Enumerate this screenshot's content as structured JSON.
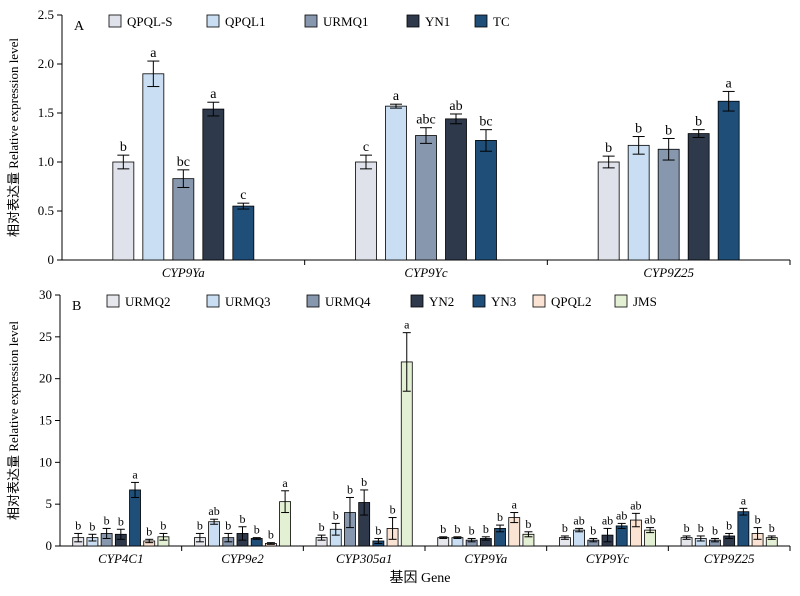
{
  "x_axis_title": "基因 Gene",
  "chart_data": [
    {
      "type": "bar",
      "panel_label": "A",
      "ylabel": "相对表达量 Relative expression level",
      "ylim": [
        0,
        2.5
      ],
      "yticks": [
        "0",
        "0.5",
        "1.0",
        "1.5",
        "2.0",
        "2.5"
      ],
      "ytick_values": [
        0,
        0.5,
        1.0,
        1.5,
        2.0,
        2.5
      ],
      "categories": [
        "CYP9Ya",
        "CYP9Yc",
        "CYP9Z25"
      ],
      "legend_position": "top-left",
      "grid": false,
      "series": [
        {
          "name": "QPQL-S",
          "color": "#dfe2ea",
          "values": [
            1.0,
            1.0,
            1.0
          ],
          "errors": [
            0.07,
            0.07,
            0.06
          ],
          "letters": [
            "b",
            "c",
            "b"
          ]
        },
        {
          "name": "QPQL1",
          "color": "#c9def2",
          "values": [
            1.9,
            1.57,
            1.17
          ],
          "errors": [
            0.13,
            0.02,
            0.09
          ],
          "letters": [
            "a",
            "a",
            "b"
          ]
        },
        {
          "name": "URMQ1",
          "color": "#8798ae",
          "values": [
            0.83,
            1.27,
            1.13
          ],
          "errors": [
            0.09,
            0.08,
            0.11
          ],
          "letters": [
            "bc",
            "abc",
            "b"
          ]
        },
        {
          "name": "YN1",
          "color": "#2e3a4c",
          "values": [
            1.54,
            1.44,
            1.29
          ],
          "errors": [
            0.07,
            0.05,
            0.04
          ],
          "letters": [
            "a",
            "ab",
            "b"
          ]
        },
        {
          "name": "TC",
          "color": "#1f4e79",
          "values": [
            0.55,
            1.22,
            1.62
          ],
          "errors": [
            0.03,
            0.11,
            0.1
          ],
          "letters": [
            "c",
            "bc",
            "a"
          ]
        }
      ]
    },
    {
      "type": "bar",
      "panel_label": "B",
      "ylabel": "相对表达量 Relative expression level",
      "xlabel": "基因 Gene",
      "ylim": [
        0,
        30
      ],
      "yticks": [
        "0",
        "5",
        "10",
        "15",
        "20",
        "25",
        "30"
      ],
      "ytick_values": [
        0,
        5,
        10,
        15,
        20,
        25,
        30
      ],
      "categories": [
        "CYP4C1",
        "CYP9e2",
        "CYP305a1",
        "CYP9Ya",
        "CYP9Yc",
        "CYP9Z25"
      ],
      "legend_position": "top-left",
      "grid": false,
      "series": [
        {
          "name": "URMQ2",
          "color": "#e6e7ec",
          "values": [
            1.0,
            1.0,
            1.0,
            1.0,
            1.0,
            1.0
          ],
          "errors": [
            0.5,
            0.5,
            0.3,
            0.1,
            0.2,
            0.2
          ],
          "letters": [
            "b",
            "b",
            "b",
            "b",
            "b",
            "b"
          ]
        },
        {
          "name": "URMQ3",
          "color": "#c9def2",
          "values": [
            1.0,
            2.9,
            2.0,
            1.0,
            1.9,
            0.9
          ],
          "errors": [
            0.4,
            0.3,
            0.7,
            0.1,
            0.2,
            0.3
          ],
          "letters": [
            "b",
            "ab",
            "b",
            "b",
            "ab",
            "b"
          ]
        },
        {
          "name": "URMQ4",
          "color": "#8798ae",
          "values": [
            1.5,
            1.0,
            4.0,
            0.7,
            0.7,
            0.7
          ],
          "errors": [
            0.6,
            0.5,
            1.8,
            0.2,
            0.2,
            0.2
          ],
          "letters": [
            "b",
            "b",
            "b",
            "b",
            "b",
            "b"
          ]
        },
        {
          "name": "YN2",
          "color": "#2e3a4c",
          "values": [
            1.4,
            1.5,
            5.2,
            0.9,
            1.3,
            1.2
          ],
          "errors": [
            0.6,
            0.8,
            1.5,
            0.2,
            0.8,
            0.3
          ],
          "letters": [
            "b",
            "b",
            "b",
            "b",
            "ab",
            "b"
          ]
        },
        {
          "name": "YN3",
          "color": "#1f4e79",
          "values": [
            6.7,
            0.9,
            0.6,
            2.1,
            2.4,
            4.1
          ],
          "errors": [
            0.9,
            0.1,
            0.3,
            0.4,
            0.3,
            0.4
          ],
          "letters": [
            "a",
            "b",
            "b",
            "b",
            "ab",
            "a"
          ]
        },
        {
          "name": "QPQL2",
          "color": "#fbe3d3",
          "values": [
            0.6,
            0.3,
            2.1,
            3.4,
            3.1,
            1.5
          ],
          "errors": [
            0.2,
            0.1,
            1.3,
            0.6,
            0.8,
            0.7
          ],
          "letters": [
            "b",
            "b",
            "b",
            "a",
            "ab",
            "b"
          ]
        },
        {
          "name": "JMS",
          "color": "#e4f0d4",
          "values": [
            1.1,
            5.3,
            22.0,
            1.4,
            1.9,
            1.0
          ],
          "errors": [
            0.4,
            1.3,
            3.5,
            0.3,
            0.3,
            0.2
          ],
          "letters": [
            "b",
            "a",
            "a",
            "b",
            "ab",
            "b"
          ]
        }
      ]
    }
  ]
}
